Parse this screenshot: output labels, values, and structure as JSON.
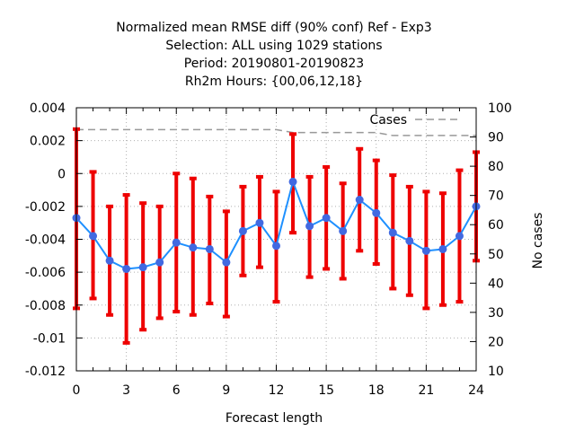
{
  "chart_data": {
    "type": "line",
    "title_lines": [
      "Normalized mean RMSE diff (90% conf) Ref - Exp3",
      "Selection: ALL using  1029 stations",
      "Period: 20190801-20190823",
      "Rh2m   Hours: {00,06,12,18}"
    ],
    "xlabel": "Forecast length",
    "ylabel": "",
    "y2label": "No cases",
    "xlim": [
      0,
      24
    ],
    "ylim": [
      -0.012,
      0.004
    ],
    "y2lim": [
      10,
      100
    ],
    "xticks": [
      0,
      3,
      6,
      9,
      12,
      15,
      18,
      21,
      24
    ],
    "yticks": [
      -0.012,
      -0.01,
      -0.008,
      -0.006,
      -0.004,
      -0.002,
      0,
      0.002,
      0.004
    ],
    "ytick_labels": [
      "-0.012",
      "-0.01",
      "-0.008",
      "-0.006",
      "-0.004",
      "-0.002",
      "0",
      "0.002",
      "0.004"
    ],
    "y2ticks": [
      10,
      20,
      30,
      40,
      50,
      60,
      70,
      80,
      90,
      100
    ],
    "grid": true,
    "legend_position": "top-right",
    "x": [
      0,
      1,
      2,
      3,
      4,
      5,
      6,
      7,
      8,
      9,
      10,
      11,
      12,
      13,
      14,
      15,
      16,
      17,
      18,
      19,
      20,
      21,
      22,
      23,
      24
    ],
    "series": [
      {
        "values": [
          -0.0027,
          -0.0038,
          -0.0053,
          -0.0058,
          -0.0057,
          -0.0054,
          -0.0042,
          -0.0045,
          -0.0046,
          -0.0054,
          -0.0035,
          -0.003,
          -0.0044,
          -0.0005,
          -0.0032,
          -0.0027,
          -0.0035,
          -0.0016,
          -0.0024,
          -0.0036,
          -0.0041,
          -0.0047,
          -0.0046,
          -0.0038,
          -0.002
        ],
        "ci_low": [
          -0.0082,
          -0.0076,
          -0.0086,
          -0.0103,
          -0.0095,
          -0.0088,
          -0.0084,
          -0.0086,
          -0.0079,
          -0.0087,
          -0.0062,
          -0.0057,
          -0.0078,
          -0.0036,
          -0.0063,
          -0.0058,
          -0.0064,
          -0.0047,
          -0.0055,
          -0.007,
          -0.0074,
          -0.0082,
          -0.008,
          -0.0078,
          -0.0053
        ],
        "ci_high": [
          0.0027,
          0.0001,
          -0.002,
          -0.0013,
          -0.0018,
          -0.002,
          0.0,
          -0.0003,
          -0.0014,
          -0.0023,
          -0.0008,
          -0.0002,
          -0.0011,
          0.0024,
          -0.0002,
          0.0004,
          -0.0006,
          0.0015,
          0.0008,
          -0.0001,
          -0.0008,
          -0.0011,
          -0.0012,
          0.0002,
          0.0013
        ],
        "color": "#1e90ff",
        "marker_color": "#4169e1",
        "errorbar_color": "#ee0000"
      },
      {
        "name": "Cases",
        "axis": "y2",
        "x": [
          0,
          1,
          2,
          3,
          4,
          5,
          6,
          7,
          8,
          9,
          10,
          11,
          12,
          13,
          14,
          15,
          16,
          17,
          18,
          19,
          20,
          21,
          22,
          23,
          24
        ],
        "values": [
          92.5,
          92.5,
          92.5,
          92.5,
          92.5,
          92.5,
          92.5,
          92.5,
          92.5,
          92.5,
          92.5,
          92.5,
          92.5,
          91.5,
          91.5,
          91.5,
          91.5,
          91.5,
          91.5,
          90.5,
          90.5,
          90.5,
          90.5,
          90.5,
          90.5
        ],
        "color": "#999999",
        "dashed": true
      }
    ]
  }
}
